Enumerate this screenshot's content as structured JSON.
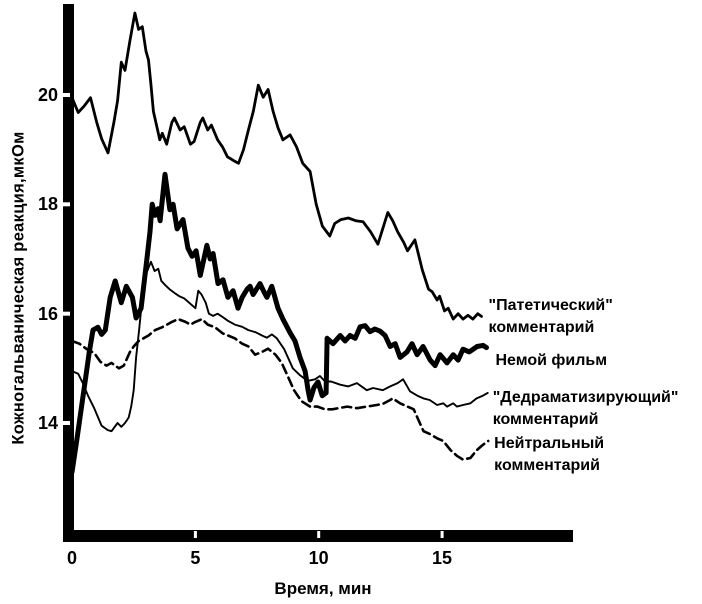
{
  "chart_data": {
    "type": "line",
    "title": "",
    "xlabel": "Время, мин",
    "ylabel": "Кожногальваническая реакция,мкОм",
    "x_ticks": [
      0,
      5,
      10,
      15
    ],
    "y_ticks": [
      14,
      16,
      18,
      20
    ],
    "xlim": [
      0,
      20.3
    ],
    "ylim": [
      11.8,
      21.7
    ],
    "grid": false,
    "legend_position": "right-of-line-ends",
    "ink_color": "#000000",
    "background_color": "#ffffff",
    "series": [
      {
        "name": "\"Патетический\" комментарий",
        "label_lines": [
          "\"Патетический\"",
          "комментарий"
        ],
        "style": "thin",
        "points": [
          [
            0,
            19.95
          ],
          [
            0.25,
            19.68
          ],
          [
            0.5,
            19.8
          ],
          [
            0.75,
            19.95
          ],
          [
            1.0,
            19.5
          ],
          [
            1.2,
            19.2
          ],
          [
            1.46,
            18.94
          ],
          [
            1.7,
            19.5
          ],
          [
            1.85,
            19.9
          ],
          [
            2.0,
            20.6
          ],
          [
            2.15,
            20.45
          ],
          [
            2.35,
            21.0
          ],
          [
            2.55,
            21.5
          ],
          [
            2.7,
            21.2
          ],
          [
            2.85,
            21.25
          ],
          [
            3.0,
            20.8
          ],
          [
            3.1,
            20.64
          ],
          [
            3.2,
            20.2
          ],
          [
            3.3,
            19.7
          ],
          [
            3.45,
            19.4
          ],
          [
            3.56,
            19.18
          ],
          [
            3.66,
            19.3
          ],
          [
            3.84,
            19.1
          ],
          [
            4.05,
            19.5
          ],
          [
            4.15,
            19.58
          ],
          [
            4.38,
            19.36
          ],
          [
            4.55,
            19.42
          ],
          [
            4.8,
            19.1
          ],
          [
            4.95,
            19.15
          ],
          [
            5.2,
            19.5
          ],
          [
            5.3,
            19.58
          ],
          [
            5.5,
            19.36
          ],
          [
            5.65,
            19.45
          ],
          [
            5.9,
            19.18
          ],
          [
            6.1,
            19.05
          ],
          [
            6.3,
            18.87
          ],
          [
            6.55,
            18.8
          ],
          [
            6.75,
            18.75
          ],
          [
            6.95,
            19.0
          ],
          [
            7.15,
            19.36
          ],
          [
            7.35,
            19.7
          ],
          [
            7.55,
            20.18
          ],
          [
            7.75,
            19.96
          ],
          [
            7.95,
            20.1
          ],
          [
            8.15,
            19.7
          ],
          [
            8.35,
            19.4
          ],
          [
            8.55,
            19.18
          ],
          [
            8.84,
            19.27
          ],
          [
            9.1,
            19.05
          ],
          [
            9.35,
            18.75
          ],
          [
            9.65,
            18.6
          ],
          [
            9.9,
            18.0
          ],
          [
            10.15,
            17.6
          ],
          [
            10.45,
            17.42
          ],
          [
            10.65,
            17.65
          ],
          [
            10.9,
            17.72
          ],
          [
            11.2,
            17.75
          ],
          [
            11.5,
            17.7
          ],
          [
            11.8,
            17.68
          ],
          [
            12.1,
            17.5
          ],
          [
            12.4,
            17.27
          ],
          [
            12.8,
            17.85
          ],
          [
            13.0,
            17.7
          ],
          [
            13.2,
            17.5
          ],
          [
            13.45,
            17.3
          ],
          [
            13.6,
            17.15
          ],
          [
            13.9,
            17.35
          ],
          [
            14.2,
            16.8
          ],
          [
            14.45,
            16.45
          ],
          [
            14.6,
            16.4
          ],
          [
            14.8,
            16.25
          ],
          [
            14.9,
            16.32
          ],
          [
            15.1,
            16.05
          ],
          [
            15.25,
            16.1
          ],
          [
            15.45,
            15.9
          ],
          [
            15.65,
            16.0
          ],
          [
            15.85,
            15.9
          ],
          [
            16.05,
            15.97
          ],
          [
            16.25,
            15.9
          ],
          [
            16.45,
            16.0
          ],
          [
            16.6,
            15.95
          ]
        ]
      },
      {
        "name": "Немой фильм",
        "label_lines": [
          "Немой фильм"
        ],
        "style": "thick",
        "points": [
          [
            0,
            13.1
          ],
          [
            0.2,
            13.7
          ],
          [
            0.45,
            14.5
          ],
          [
            0.7,
            15.3
          ],
          [
            0.85,
            15.7
          ],
          [
            1.05,
            15.75
          ],
          [
            1.2,
            15.62
          ],
          [
            1.35,
            15.7
          ],
          [
            1.55,
            16.3
          ],
          [
            1.75,
            16.6
          ],
          [
            2.0,
            16.2
          ],
          [
            2.2,
            16.5
          ],
          [
            2.45,
            16.3
          ],
          [
            2.6,
            15.92
          ],
          [
            2.8,
            16.1
          ],
          [
            3.05,
            17.05
          ],
          [
            3.16,
            17.5
          ],
          [
            3.25,
            18.0
          ],
          [
            3.37,
            17.8
          ],
          [
            3.49,
            17.92
          ],
          [
            3.57,
            17.7
          ],
          [
            3.77,
            18.55
          ],
          [
            3.97,
            17.9
          ],
          [
            4.1,
            18.0
          ],
          [
            4.26,
            17.55
          ],
          [
            4.5,
            17.72
          ],
          [
            4.7,
            17.2
          ],
          [
            4.87,
            17.05
          ],
          [
            5.03,
            17.15
          ],
          [
            5.2,
            16.7
          ],
          [
            5.47,
            17.25
          ],
          [
            5.6,
            17.0
          ],
          [
            5.72,
            17.1
          ],
          [
            5.92,
            16.55
          ],
          [
            6.12,
            16.62
          ],
          [
            6.32,
            16.3
          ],
          [
            6.53,
            16.42
          ],
          [
            6.73,
            16.1
          ],
          [
            6.9,
            16.3
          ],
          [
            7.1,
            16.45
          ],
          [
            7.22,
            16.5
          ],
          [
            7.34,
            16.35
          ],
          [
            7.62,
            16.55
          ],
          [
            7.76,
            16.42
          ],
          [
            7.9,
            16.3
          ],
          [
            8.1,
            16.5
          ],
          [
            8.35,
            16.1
          ],
          [
            8.55,
            15.9
          ],
          [
            8.84,
            15.65
          ],
          [
            9.04,
            15.5
          ],
          [
            9.24,
            15.2
          ],
          [
            9.45,
            14.95
          ],
          [
            9.57,
            14.6
          ],
          [
            9.65,
            14.42
          ],
          [
            9.81,
            14.65
          ],
          [
            9.97,
            14.75
          ],
          [
            10.14,
            14.5
          ],
          [
            10.3,
            14.55
          ],
          [
            10.34,
            15.55
          ],
          [
            10.58,
            15.45
          ],
          [
            10.87,
            15.6
          ],
          [
            11.07,
            15.5
          ],
          [
            11.27,
            15.6
          ],
          [
            11.48,
            15.55
          ],
          [
            11.68,
            15.76
          ],
          [
            11.88,
            15.78
          ],
          [
            12.08,
            15.67
          ],
          [
            12.28,
            15.72
          ],
          [
            12.49,
            15.68
          ],
          [
            12.69,
            15.6
          ],
          [
            12.9,
            15.4
          ],
          [
            13.1,
            15.45
          ],
          [
            13.3,
            15.2
          ],
          [
            13.58,
            15.3
          ],
          [
            13.78,
            15.45
          ],
          [
            13.99,
            15.25
          ],
          [
            14.23,
            15.4
          ],
          [
            14.52,
            15.15
          ],
          [
            14.72,
            15.05
          ],
          [
            14.92,
            15.25
          ],
          [
            15.2,
            15.1
          ],
          [
            15.45,
            15.25
          ],
          [
            15.65,
            15.15
          ],
          [
            15.85,
            15.35
          ],
          [
            16.1,
            15.3
          ],
          [
            16.42,
            15.4
          ],
          [
            16.66,
            15.42
          ],
          [
            16.8,
            15.38
          ]
        ]
      },
      {
        "name": "\"Дедраматизирующий\" комментарий",
        "label_lines": [
          "\"Дедраматизирующий\"",
          "комментарий"
        ],
        "style": "thin",
        "points": [
          [
            0,
            14.95
          ],
          [
            0.25,
            14.9
          ],
          [
            0.45,
            14.72
          ],
          [
            0.65,
            14.5
          ],
          [
            0.9,
            14.27
          ],
          [
            1.2,
            13.95
          ],
          [
            1.45,
            13.87
          ],
          [
            1.6,
            13.85
          ],
          [
            1.85,
            14.0
          ],
          [
            2.0,
            13.93
          ],
          [
            2.15,
            14.0
          ],
          [
            2.3,
            14.1
          ],
          [
            2.4,
            14.3
          ],
          [
            2.5,
            14.6
          ],
          [
            2.6,
            15.2
          ],
          [
            2.72,
            15.7
          ],
          [
            2.85,
            16.3
          ],
          [
            3.0,
            16.72
          ],
          [
            3.2,
            16.95
          ],
          [
            3.35,
            16.78
          ],
          [
            3.5,
            16.82
          ],
          [
            3.62,
            16.6
          ],
          [
            3.78,
            16.52
          ],
          [
            3.95,
            16.45
          ],
          [
            4.15,
            16.38
          ],
          [
            4.35,
            16.32
          ],
          [
            4.55,
            16.28
          ],
          [
            4.8,
            16.18
          ],
          [
            5.0,
            16.1
          ],
          [
            5.12,
            16.42
          ],
          [
            5.25,
            16.35
          ],
          [
            5.42,
            16.2
          ],
          [
            5.55,
            16.0
          ],
          [
            5.72,
            15.96
          ],
          [
            5.9,
            16.0
          ],
          [
            6.1,
            15.94
          ],
          [
            6.32,
            15.87
          ],
          [
            6.6,
            15.8
          ],
          [
            6.9,
            15.76
          ],
          [
            7.15,
            15.7
          ],
          [
            7.45,
            15.66
          ],
          [
            7.7,
            15.6
          ],
          [
            7.9,
            15.56
          ],
          [
            8.1,
            15.62
          ],
          [
            8.3,
            15.55
          ],
          [
            8.6,
            15.35
          ],
          [
            8.95,
            15.0
          ],
          [
            9.25,
            14.87
          ],
          [
            9.55,
            14.77
          ],
          [
            9.85,
            14.8
          ],
          [
            10.05,
            14.86
          ],
          [
            10.26,
            14.76
          ],
          [
            10.5,
            14.76
          ],
          [
            10.87,
            14.7
          ],
          [
            11.2,
            14.67
          ],
          [
            11.55,
            14.73
          ],
          [
            11.95,
            14.6
          ],
          [
            12.2,
            14.64
          ],
          [
            12.6,
            14.6
          ],
          [
            12.9,
            14.67
          ],
          [
            13.2,
            14.73
          ],
          [
            13.42,
            14.8
          ],
          [
            13.7,
            14.58
          ],
          [
            14.0,
            14.5
          ],
          [
            14.25,
            14.45
          ],
          [
            14.5,
            14.42
          ],
          [
            14.8,
            14.33
          ],
          [
            15.05,
            14.36
          ],
          [
            15.2,
            14.3
          ],
          [
            15.45,
            14.36
          ],
          [
            15.6,
            14.3
          ],
          [
            15.85,
            14.33
          ],
          [
            16.15,
            14.36
          ],
          [
            16.4,
            14.45
          ],
          [
            16.65,
            14.5
          ],
          [
            16.85,
            14.55
          ]
        ]
      },
      {
        "name": "Нейтральный комментарий",
        "label_lines": [
          "Нейтральный",
          "комментарий"
        ],
        "style": "dashed",
        "points": [
          [
            0,
            15.5
          ],
          [
            0.3,
            15.45
          ],
          [
            0.6,
            15.35
          ],
          [
            0.9,
            15.28
          ],
          [
            1.15,
            15.12
          ],
          [
            1.4,
            15.05
          ],
          [
            1.6,
            15.1
          ],
          [
            1.9,
            15.0
          ],
          [
            2.1,
            15.05
          ],
          [
            2.35,
            15.3
          ],
          [
            2.5,
            15.4
          ],
          [
            2.7,
            15.5
          ],
          [
            2.9,
            15.55
          ],
          [
            3.1,
            15.6
          ],
          [
            3.37,
            15.7
          ],
          [
            3.65,
            15.75
          ],
          [
            3.85,
            15.8
          ],
          [
            4.05,
            15.85
          ],
          [
            4.3,
            15.9
          ],
          [
            4.6,
            15.85
          ],
          [
            4.8,
            15.8
          ],
          [
            5.0,
            15.85
          ],
          [
            5.27,
            15.9
          ],
          [
            5.5,
            15.8
          ],
          [
            5.8,
            15.75
          ],
          [
            6.1,
            15.64
          ],
          [
            6.32,
            15.6
          ],
          [
            6.6,
            15.55
          ],
          [
            6.9,
            15.45
          ],
          [
            7.15,
            15.4
          ],
          [
            7.42,
            15.25
          ],
          [
            7.7,
            15.3
          ],
          [
            7.95,
            15.36
          ],
          [
            8.25,
            15.25
          ],
          [
            8.5,
            15.1
          ],
          [
            8.75,
            14.85
          ],
          [
            9.0,
            14.6
          ],
          [
            9.3,
            14.4
          ],
          [
            9.65,
            14.3
          ],
          [
            9.95,
            14.3
          ],
          [
            10.25,
            14.25
          ],
          [
            10.55,
            14.25
          ],
          [
            11.15,
            14.3
          ],
          [
            11.55,
            14.27
          ],
          [
            11.95,
            14.3
          ],
          [
            12.35,
            14.33
          ],
          [
            12.6,
            14.35
          ],
          [
            12.9,
            14.42
          ],
          [
            13.0,
            14.45
          ],
          [
            13.3,
            14.36
          ],
          [
            13.6,
            14.3
          ],
          [
            13.85,
            14.25
          ],
          [
            14.1,
            14.0
          ],
          [
            14.25,
            13.85
          ],
          [
            14.5,
            13.8
          ],
          [
            14.8,
            13.72
          ],
          [
            15.05,
            13.67
          ],
          [
            15.35,
            13.5
          ],
          [
            15.6,
            13.4
          ],
          [
            15.85,
            13.33
          ],
          [
            16.15,
            13.36
          ],
          [
            16.4,
            13.5
          ],
          [
            16.65,
            13.6
          ],
          [
            16.87,
            13.67
          ]
        ]
      }
    ]
  }
}
